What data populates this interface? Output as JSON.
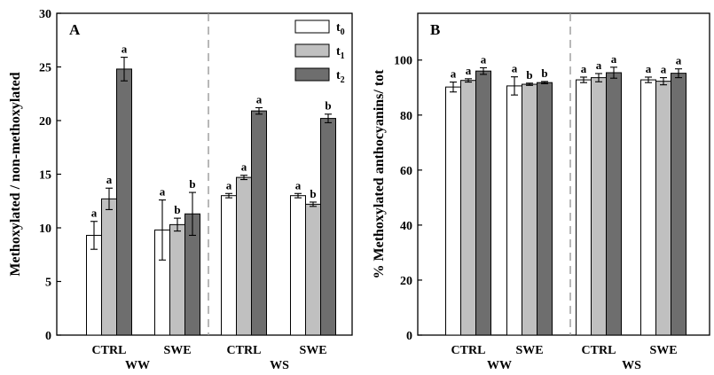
{
  "chart_data": [
    {
      "type": "bar",
      "panel_label": "A",
      "ylabel": "Methoxylated / non-methoxylated",
      "ylim": [
        0,
        30
      ],
      "yticks": [
        0,
        5,
        10,
        15,
        20,
        25,
        30
      ],
      "categories": [
        "CTRL",
        "SWE",
        "CTRL",
        "SWE"
      ],
      "groups": [
        "WW",
        "WS"
      ],
      "legend": {
        "position": "top-right",
        "entries": [
          "t0",
          "t1",
          "t2"
        ]
      },
      "series_colors": [
        "#ffffff",
        "#c0c0c0",
        "#6e6e6e"
      ],
      "series": [
        {
          "name": "t0",
          "values": [
            9.3,
            9.8,
            13.0,
            13.0
          ],
          "errors": [
            1.3,
            2.8,
            0.2,
            0.2
          ],
          "letters": [
            "a",
            "a",
            "a",
            "a"
          ]
        },
        {
          "name": "t1",
          "values": [
            12.7,
            10.3,
            14.7,
            12.2
          ],
          "errors": [
            1.0,
            0.6,
            0.2,
            0.2
          ],
          "letters": [
            "a",
            "b",
            "a",
            "b"
          ]
        },
        {
          "name": "t2",
          "values": [
            24.8,
            11.3,
            20.9,
            20.2
          ],
          "errors": [
            1.1,
            2.0,
            0.3,
            0.4
          ],
          "letters": [
            "a",
            "b",
            "a",
            "b"
          ]
        }
      ]
    },
    {
      "type": "bar",
      "panel_label": "B",
      "ylabel": "% Methoxylated anthocyanins/ tot",
      "ylim": [
        0,
        117
      ],
      "yticks": [
        0,
        20,
        40,
        60,
        80,
        100
      ],
      "categories": [
        "CTRL",
        "SWE",
        "CTRL",
        "SWE"
      ],
      "groups": [
        "WW",
        "WS"
      ],
      "series_colors": [
        "#ffffff",
        "#c0c0c0",
        "#6e6e6e"
      ],
      "series": [
        {
          "name": "t0",
          "values": [
            90.2,
            90.6,
            92.8,
            92.8
          ],
          "errors": [
            1.8,
            3.3,
            1.0,
            1.0
          ],
          "letters": [
            "a",
            "a",
            "a",
            "a"
          ]
        },
        {
          "name": "t1",
          "values": [
            92.6,
            91.2,
            93.6,
            92.3
          ],
          "errors": [
            0.6,
            0.4,
            1.5,
            1.3
          ],
          "letters": [
            "a",
            "b",
            "a",
            "a"
          ]
        },
        {
          "name": "t2",
          "values": [
            96.0,
            91.8,
            95.4,
            95.2
          ],
          "errors": [
            1.2,
            0.4,
            2.0,
            1.6
          ],
          "letters": [
            "a",
            "b",
            "a",
            "a"
          ]
        }
      ]
    }
  ]
}
